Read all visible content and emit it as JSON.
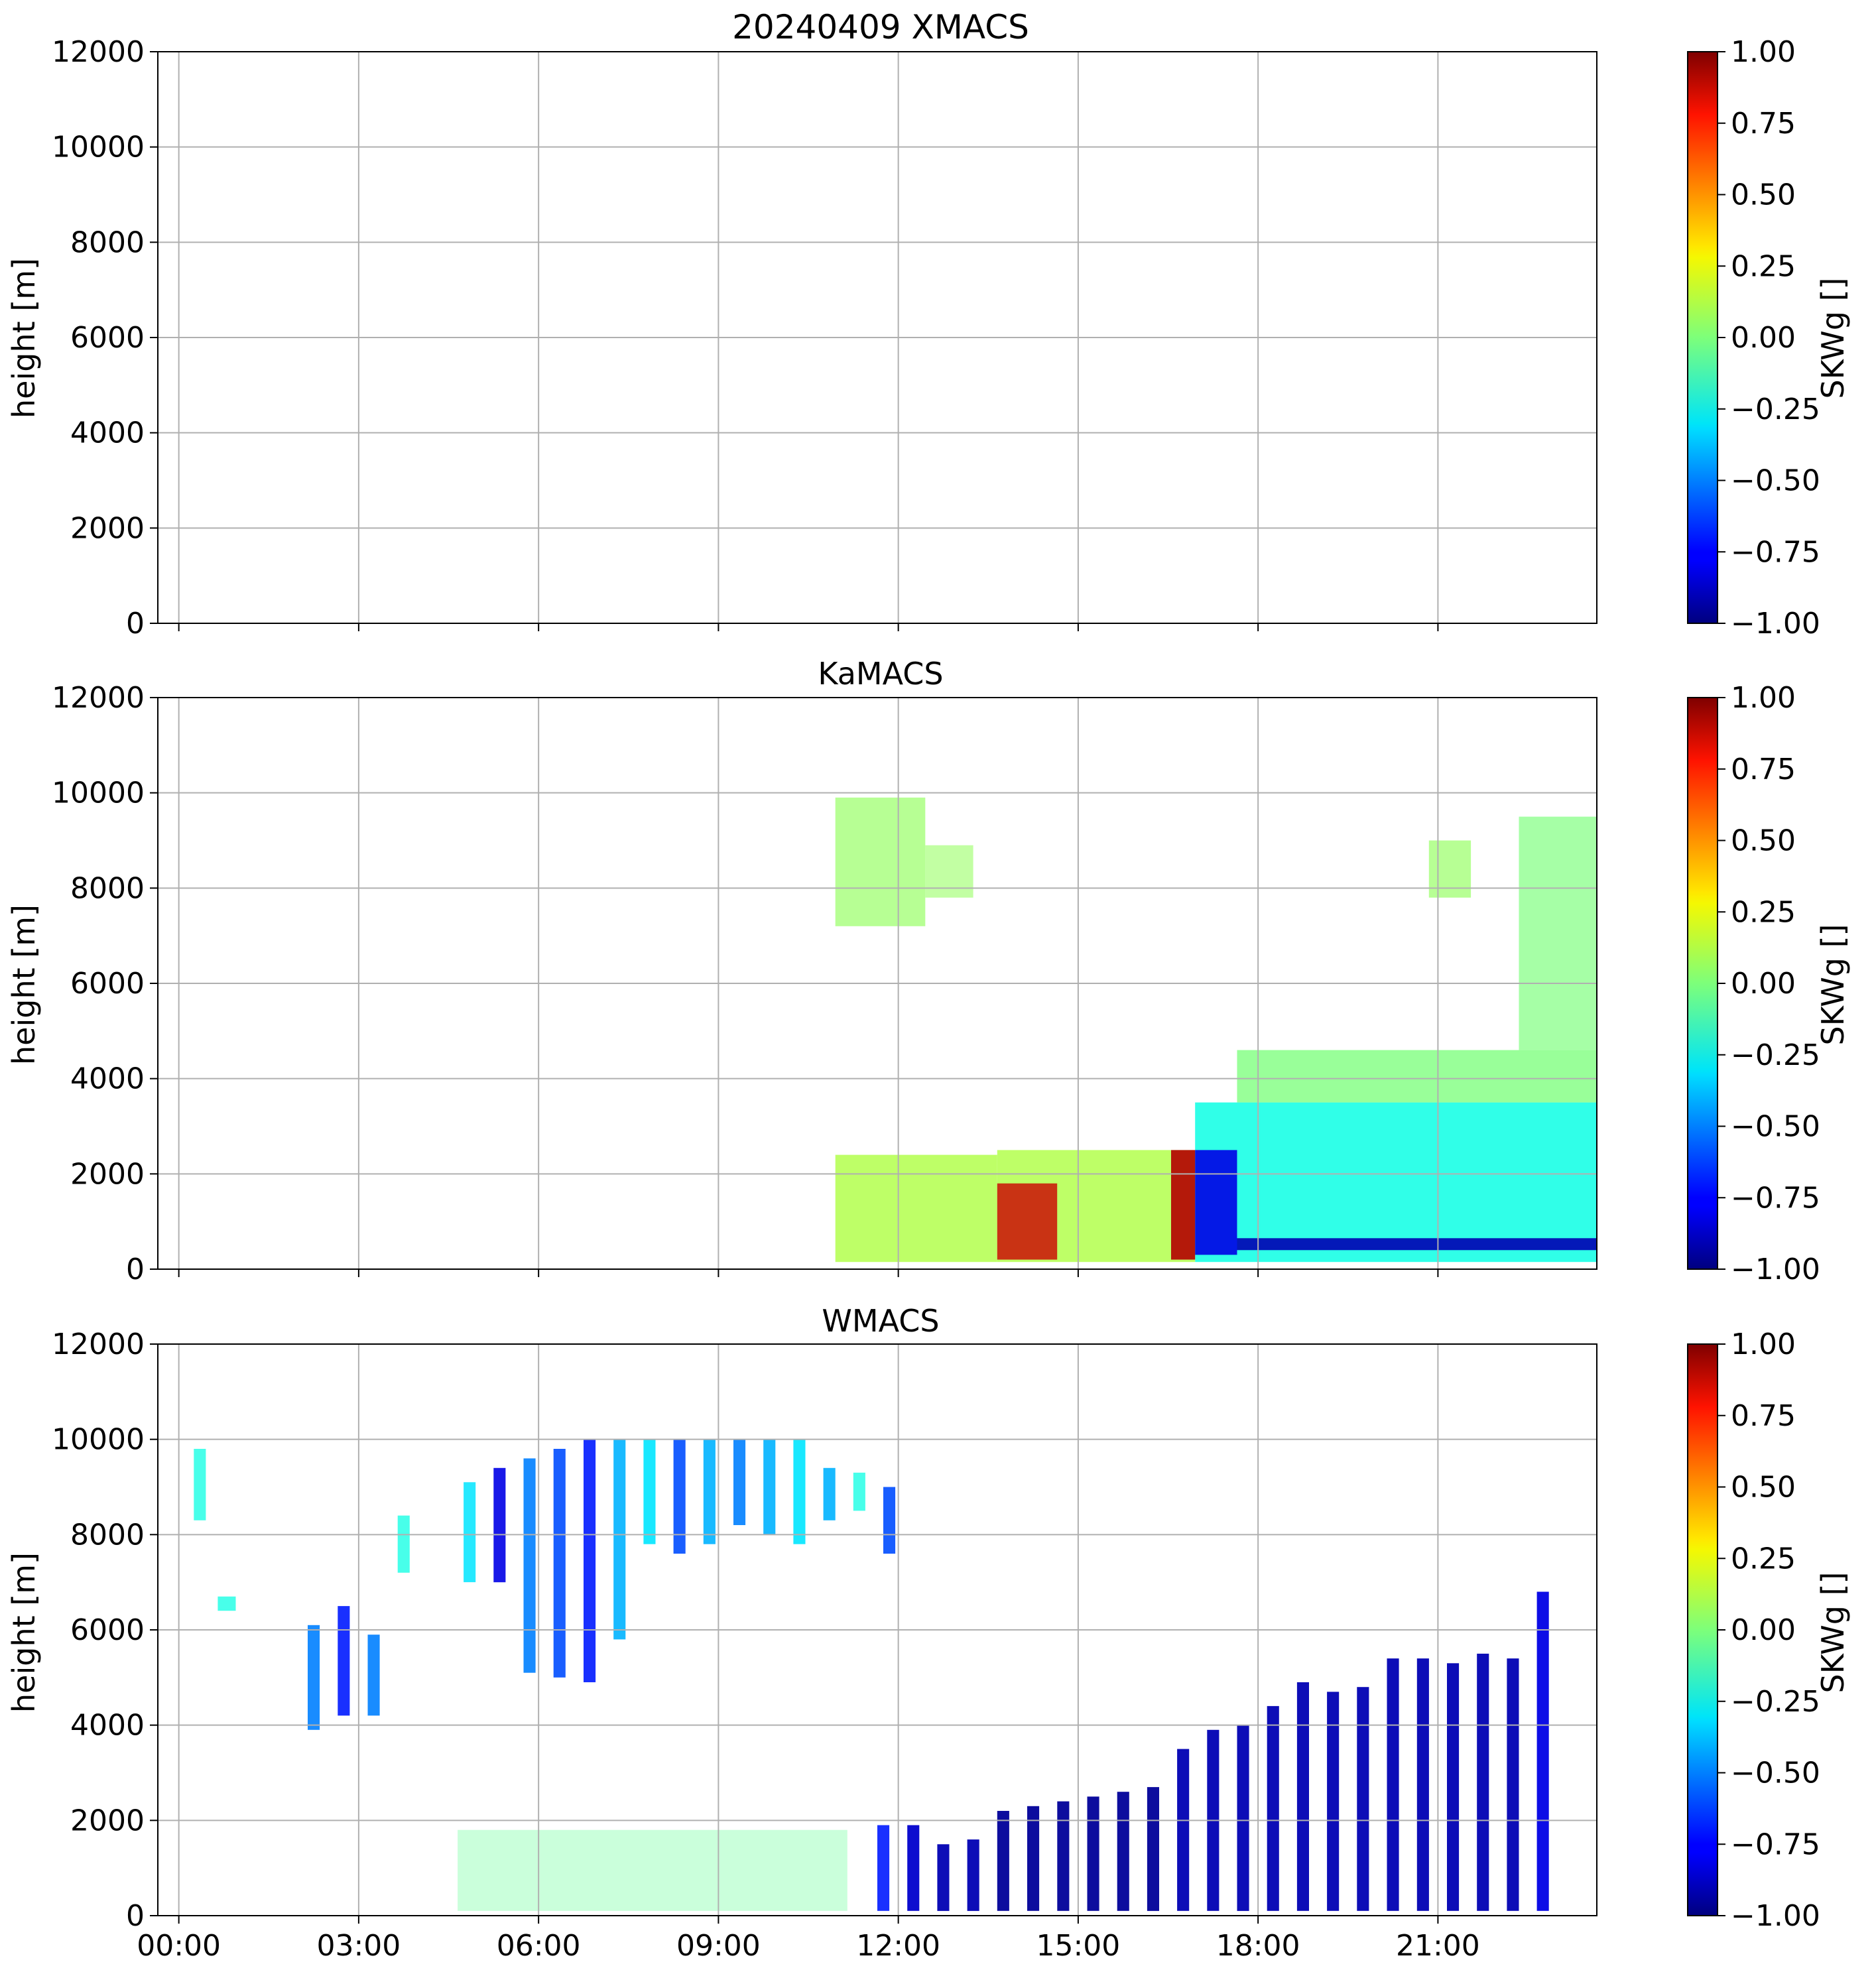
{
  "chart_data": [
    {
      "type": "heatmap",
      "title": "20240409 XMACS",
      "ylabel": "height [m]",
      "xlabel": "",
      "x_range_hours": [
        0,
        24
      ],
      "x_ticks": [
        "00:00",
        "03:00",
        "06:00",
        "09:00",
        "12:00",
        "15:00",
        "18:00",
        "21:00"
      ],
      "x_ticks_visible": false,
      "ylim": [
        0,
        12000
      ],
      "y_ticks": [
        0,
        2000,
        4000,
        6000,
        8000,
        10000,
        12000
      ],
      "grid": true,
      "colorbar": {
        "label": "SKWg []",
        "vmin": -1.0,
        "vmax": 1.0,
        "ticks": [
          "−1.00",
          "−0.75",
          "−0.50",
          "−0.25",
          "0.00",
          "0.25",
          "0.50",
          "0.75",
          "1.00"
        ],
        "colormap": "jet"
      },
      "regions": []
    },
    {
      "type": "heatmap",
      "title": "KaMACS",
      "ylabel": "height [m]",
      "xlabel": "",
      "x_range_hours": [
        0,
        24
      ],
      "x_ticks": [
        "00:00",
        "03:00",
        "06:00",
        "09:00",
        "12:00",
        "15:00",
        "18:00",
        "21:00"
      ],
      "x_ticks_visible": false,
      "ylim": [
        0,
        12000
      ],
      "y_ticks": [
        0,
        2000,
        4000,
        6000,
        8000,
        10000,
        12000
      ],
      "grid": true,
      "colorbar": {
        "label": "SKWg []",
        "vmin": -1.0,
        "vmax": 1.0,
        "ticks": [
          "−1.00",
          "−0.75",
          "−0.50",
          "−0.25",
          "0.00",
          "0.25",
          "0.50",
          "0.75",
          "1.00"
        ],
        "colormap": "jet"
      },
      "regions": [
        {
          "t0": 11.3,
          "t1": 12.8,
          "h0": 7200,
          "h1": 9900,
          "value": 0.05,
          "alpha": 0.7
        },
        {
          "t0": 12.8,
          "t1": 13.6,
          "h0": 7800,
          "h1": 8900,
          "value": 0.05,
          "alpha": 0.6
        },
        {
          "t0": 17.3,
          "t1": 24.0,
          "h0": 150,
          "h1": 3500,
          "value": -0.2,
          "alpha": 0.9
        },
        {
          "t0": 18.0,
          "t1": 24.0,
          "h0": 3500,
          "h1": 4600,
          "value": 0.0,
          "alpha": 0.8
        },
        {
          "t0": 22.7,
          "t1": 24.0,
          "h0": 4600,
          "h1": 9500,
          "value": 0.0,
          "alpha": 0.7
        },
        {
          "t0": 21.2,
          "t1": 21.9,
          "h0": 7800,
          "h1": 9000,
          "value": 0.05,
          "alpha": 0.7
        },
        {
          "t0": 11.3,
          "t1": 14.0,
          "h0": 150,
          "h1": 2400,
          "value": 0.1,
          "alpha": 0.85
        },
        {
          "t0": 14.0,
          "t1": 17.3,
          "h0": 150,
          "h1": 2500,
          "value": 0.1,
          "alpha": 0.85
        },
        {
          "t0": 14.0,
          "t1": 15.0,
          "h0": 200,
          "h1": 1800,
          "value": 0.85,
          "alpha": 0.8
        },
        {
          "t0": 16.9,
          "t1": 17.3,
          "h0": 200,
          "h1": 2500,
          "value": 0.9,
          "alpha": 0.9
        },
        {
          "t0": 17.3,
          "t1": 18.0,
          "h0": 300,
          "h1": 2500,
          "value": -0.8,
          "alpha": 0.9
        },
        {
          "t0": 18.0,
          "t1": 24.0,
          "h0": 400,
          "h1": 650,
          "value": -0.9,
          "alpha": 0.9
        }
      ]
    },
    {
      "type": "heatmap",
      "title": "WMACS",
      "ylabel": "height [m]",
      "xlabel": "",
      "x_range_hours": [
        0,
        24
      ],
      "x_ticks": [
        "00:00",
        "03:00",
        "06:00",
        "09:00",
        "12:00",
        "15:00",
        "18:00",
        "21:00"
      ],
      "x_ticks_visible": true,
      "ylim": [
        0,
        12000
      ],
      "y_ticks": [
        0,
        2000,
        4000,
        6000,
        8000,
        10000,
        12000
      ],
      "grid": true,
      "colorbar": {
        "label": "SKWg []",
        "vmin": -1.0,
        "vmax": 1.0,
        "ticks": [
          "−1.00",
          "−0.75",
          "−0.50",
          "−0.25",
          "0.00",
          "0.25",
          "0.50",
          "0.75",
          "1.00"
        ],
        "colormap": "jet"
      },
      "regions": [
        {
          "t0": 0.6,
          "t1": 0.8,
          "h0": 8300,
          "h1": 9800,
          "value": -0.2,
          "alpha": 0.8
        },
        {
          "t0": 1.0,
          "t1": 1.3,
          "h0": 6400,
          "h1": 6700,
          "value": -0.2,
          "alpha": 0.8
        },
        {
          "t0": 2.5,
          "t1": 2.7,
          "h0": 3900,
          "h1": 6100,
          "value": -0.5,
          "alpha": 0.9
        },
        {
          "t0": 3.0,
          "t1": 3.2,
          "h0": 4200,
          "h1": 6500,
          "value": -0.7,
          "alpha": 0.9
        },
        {
          "t0": 3.5,
          "t1": 3.7,
          "h0": 4200,
          "h1": 5900,
          "value": -0.5,
          "alpha": 0.9
        },
        {
          "t0": 4.0,
          "t1": 4.2,
          "h0": 7200,
          "h1": 8400,
          "value": -0.2,
          "alpha": 0.8
        },
        {
          "t0": 5.1,
          "t1": 5.3,
          "h0": 7000,
          "h1": 9100,
          "value": -0.3,
          "alpha": 0.85
        },
        {
          "t0": 5.6,
          "t1": 5.8,
          "h0": 7000,
          "h1": 9400,
          "value": -0.8,
          "alpha": 0.9
        },
        {
          "t0": 6.1,
          "t1": 6.3,
          "h0": 5100,
          "h1": 9600,
          "value": -0.5,
          "alpha": 0.9
        },
        {
          "t0": 6.6,
          "t1": 6.8,
          "h0": 5000,
          "h1": 9800,
          "value": -0.6,
          "alpha": 0.9
        },
        {
          "t0": 7.1,
          "t1": 7.3,
          "h0": 4900,
          "h1": 10000,
          "value": -0.7,
          "alpha": 0.9
        },
        {
          "t0": 7.6,
          "t1": 7.8,
          "h0": 5800,
          "h1": 10000,
          "value": -0.4,
          "alpha": 0.9
        },
        {
          "t0": 8.1,
          "t1": 8.3,
          "h0": 7800,
          "h1": 10000,
          "value": -0.3,
          "alpha": 0.9
        },
        {
          "t0": 8.6,
          "t1": 8.8,
          "h0": 7600,
          "h1": 10000,
          "value": -0.6,
          "alpha": 0.9
        },
        {
          "t0": 9.1,
          "t1": 9.3,
          "h0": 7800,
          "h1": 10000,
          "value": -0.4,
          "alpha": 0.9
        },
        {
          "t0": 9.6,
          "t1": 9.8,
          "h0": 8200,
          "h1": 10000,
          "value": -0.5,
          "alpha": 0.9
        },
        {
          "t0": 10.1,
          "t1": 10.3,
          "h0": 8000,
          "h1": 10000,
          "value": -0.4,
          "alpha": 0.9
        },
        {
          "t0": 10.6,
          "t1": 10.8,
          "h0": 7800,
          "h1": 10000,
          "value": -0.3,
          "alpha": 0.9
        },
        {
          "t0": 11.1,
          "t1": 11.3,
          "h0": 8300,
          "h1": 9400,
          "value": -0.4,
          "alpha": 0.9
        },
        {
          "t0": 11.6,
          "t1": 11.8,
          "h0": 8500,
          "h1": 9300,
          "value": -0.2,
          "alpha": 0.8
        },
        {
          "t0": 12.1,
          "t1": 12.3,
          "h0": 7600,
          "h1": 9000,
          "value": -0.6,
          "alpha": 0.9
        },
        {
          "t0": 5.0,
          "t1": 11.5,
          "h0": 100,
          "h1": 1800,
          "value": -0.05,
          "alpha": 0.35
        },
        {
          "t0": 12.0,
          "t1": 12.2,
          "h0": 100,
          "h1": 1900,
          "value": -0.7,
          "alpha": 0.9
        },
        {
          "t0": 12.5,
          "t1": 12.7,
          "h0": 100,
          "h1": 1900,
          "value": -0.85,
          "alpha": 0.95
        },
        {
          "t0": 13.0,
          "t1": 13.2,
          "h0": 100,
          "h1": 1500,
          "value": -0.9,
          "alpha": 0.95
        },
        {
          "t0": 13.5,
          "t1": 13.7,
          "h0": 100,
          "h1": 1600,
          "value": -0.9,
          "alpha": 0.95
        },
        {
          "t0": 14.0,
          "t1": 14.2,
          "h0": 100,
          "h1": 2200,
          "value": -0.95,
          "alpha": 0.95
        },
        {
          "t0": 14.5,
          "t1": 14.7,
          "h0": 100,
          "h1": 2300,
          "value": -0.95,
          "alpha": 0.95
        },
        {
          "t0": 15.0,
          "t1": 15.2,
          "h0": 100,
          "h1": 2400,
          "value": -0.95,
          "alpha": 0.95
        },
        {
          "t0": 15.5,
          "t1": 15.7,
          "h0": 100,
          "h1": 2500,
          "value": -0.95,
          "alpha": 0.95
        },
        {
          "t0": 16.0,
          "t1": 16.2,
          "h0": 100,
          "h1": 2600,
          "value": -0.95,
          "alpha": 0.95
        },
        {
          "t0": 16.5,
          "t1": 16.7,
          "h0": 100,
          "h1": 2700,
          "value": -0.95,
          "alpha": 0.95
        },
        {
          "t0": 17.0,
          "t1": 17.2,
          "h0": 100,
          "h1": 3500,
          "value": -0.9,
          "alpha": 0.95
        },
        {
          "t0": 17.5,
          "t1": 17.7,
          "h0": 100,
          "h1": 3900,
          "value": -0.9,
          "alpha": 0.95
        },
        {
          "t0": 18.0,
          "t1": 18.2,
          "h0": 100,
          "h1": 4000,
          "value": -0.9,
          "alpha": 0.95
        },
        {
          "t0": 18.5,
          "t1": 18.7,
          "h0": 100,
          "h1": 4400,
          "value": -0.9,
          "alpha": 0.95
        },
        {
          "t0": 19.0,
          "t1": 19.2,
          "h0": 100,
          "h1": 4900,
          "value": -0.9,
          "alpha": 0.95
        },
        {
          "t0": 19.5,
          "t1": 19.7,
          "h0": 100,
          "h1": 4700,
          "value": -0.9,
          "alpha": 0.95
        },
        {
          "t0": 20.0,
          "t1": 20.2,
          "h0": 100,
          "h1": 4800,
          "value": -0.9,
          "alpha": 0.95
        },
        {
          "t0": 20.5,
          "t1": 20.7,
          "h0": 100,
          "h1": 5400,
          "value": -0.9,
          "alpha": 0.95
        },
        {
          "t0": 21.0,
          "t1": 21.2,
          "h0": 100,
          "h1": 5400,
          "value": -0.9,
          "alpha": 0.95
        },
        {
          "t0": 21.5,
          "t1": 21.7,
          "h0": 100,
          "h1": 5300,
          "value": -0.9,
          "alpha": 0.95
        },
        {
          "t0": 22.0,
          "t1": 22.2,
          "h0": 100,
          "h1": 5500,
          "value": -0.9,
          "alpha": 0.95
        },
        {
          "t0": 22.5,
          "t1": 22.7,
          "h0": 100,
          "h1": 5400,
          "value": -0.9,
          "alpha": 0.95
        },
        {
          "t0": 23.0,
          "t1": 23.2,
          "h0": 100,
          "h1": 6800,
          "value": -0.8,
          "alpha": 0.95
        }
      ]
    }
  ]
}
